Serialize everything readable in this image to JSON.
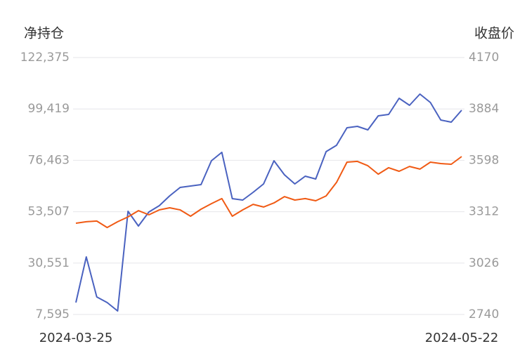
{
  "chart_data": {
    "type": "line",
    "y_label": "净持仓",
    "y2_label": "收盘价",
    "categories": [
      "2024-03-25",
      null,
      null,
      null,
      null,
      null,
      null,
      null,
      null,
      null,
      null,
      null,
      null,
      null,
      null,
      null,
      null,
      null,
      null,
      null,
      null,
      null,
      null,
      null,
      null,
      null,
      null,
      null,
      null,
      null,
      null,
      null,
      null,
      null,
      null,
      null,
      null,
      "2024-05-22"
    ],
    "series": [
      {
        "color": "#4a62c0",
        "axis": "y",
        "values": [
          12926,
          33310,
          15435,
          12926,
          9163,
          53694,
          47109,
          53381,
          56203,
          60593,
          64357,
          64984,
          65611,
          76273,
          80037,
          59339,
          58712,
          62161,
          65925,
          76273,
          70001,
          65925,
          69374,
          68120,
          80350,
          83173,
          91013,
          91640,
          90072,
          96344,
          96971,
          104184,
          101048,
          106065,
          102302,
          94462,
          93521,
          98853
        ]
      },
      {
        "color": "#f05a14",
        "axis": "y2",
        "values": [
          3248,
          3256,
          3260,
          3224,
          3256,
          3283,
          3318,
          3295,
          3322,
          3334,
          3322,
          3287,
          3326,
          3357,
          3385,
          3287,
          3322,
          3353,
          3338,
          3361,
          3396,
          3377,
          3385,
          3373,
          3400,
          3475,
          3588,
          3592,
          3568,
          3521,
          3557,
          3537,
          3564,
          3549,
          3588,
          3580,
          3576,
          3619
        ]
      }
    ],
    "ylim": [
      7595,
      122375
    ],
    "yticks": [
      {
        "value": 7595,
        "label": "7,595"
      },
      {
        "value": 30551,
        "label": "30,551"
      },
      {
        "value": 53507,
        "label": "53,507"
      },
      {
        "value": 76463,
        "label": "76,463"
      },
      {
        "value": 99419,
        "label": "99,419"
      },
      {
        "value": 122375,
        "label": "122,375"
      }
    ],
    "y2lim": [
      2740,
      4170
    ],
    "y2ticks": [
      2740,
      3026,
      3312,
      3598,
      3884,
      4170
    ],
    "grid": true
  }
}
